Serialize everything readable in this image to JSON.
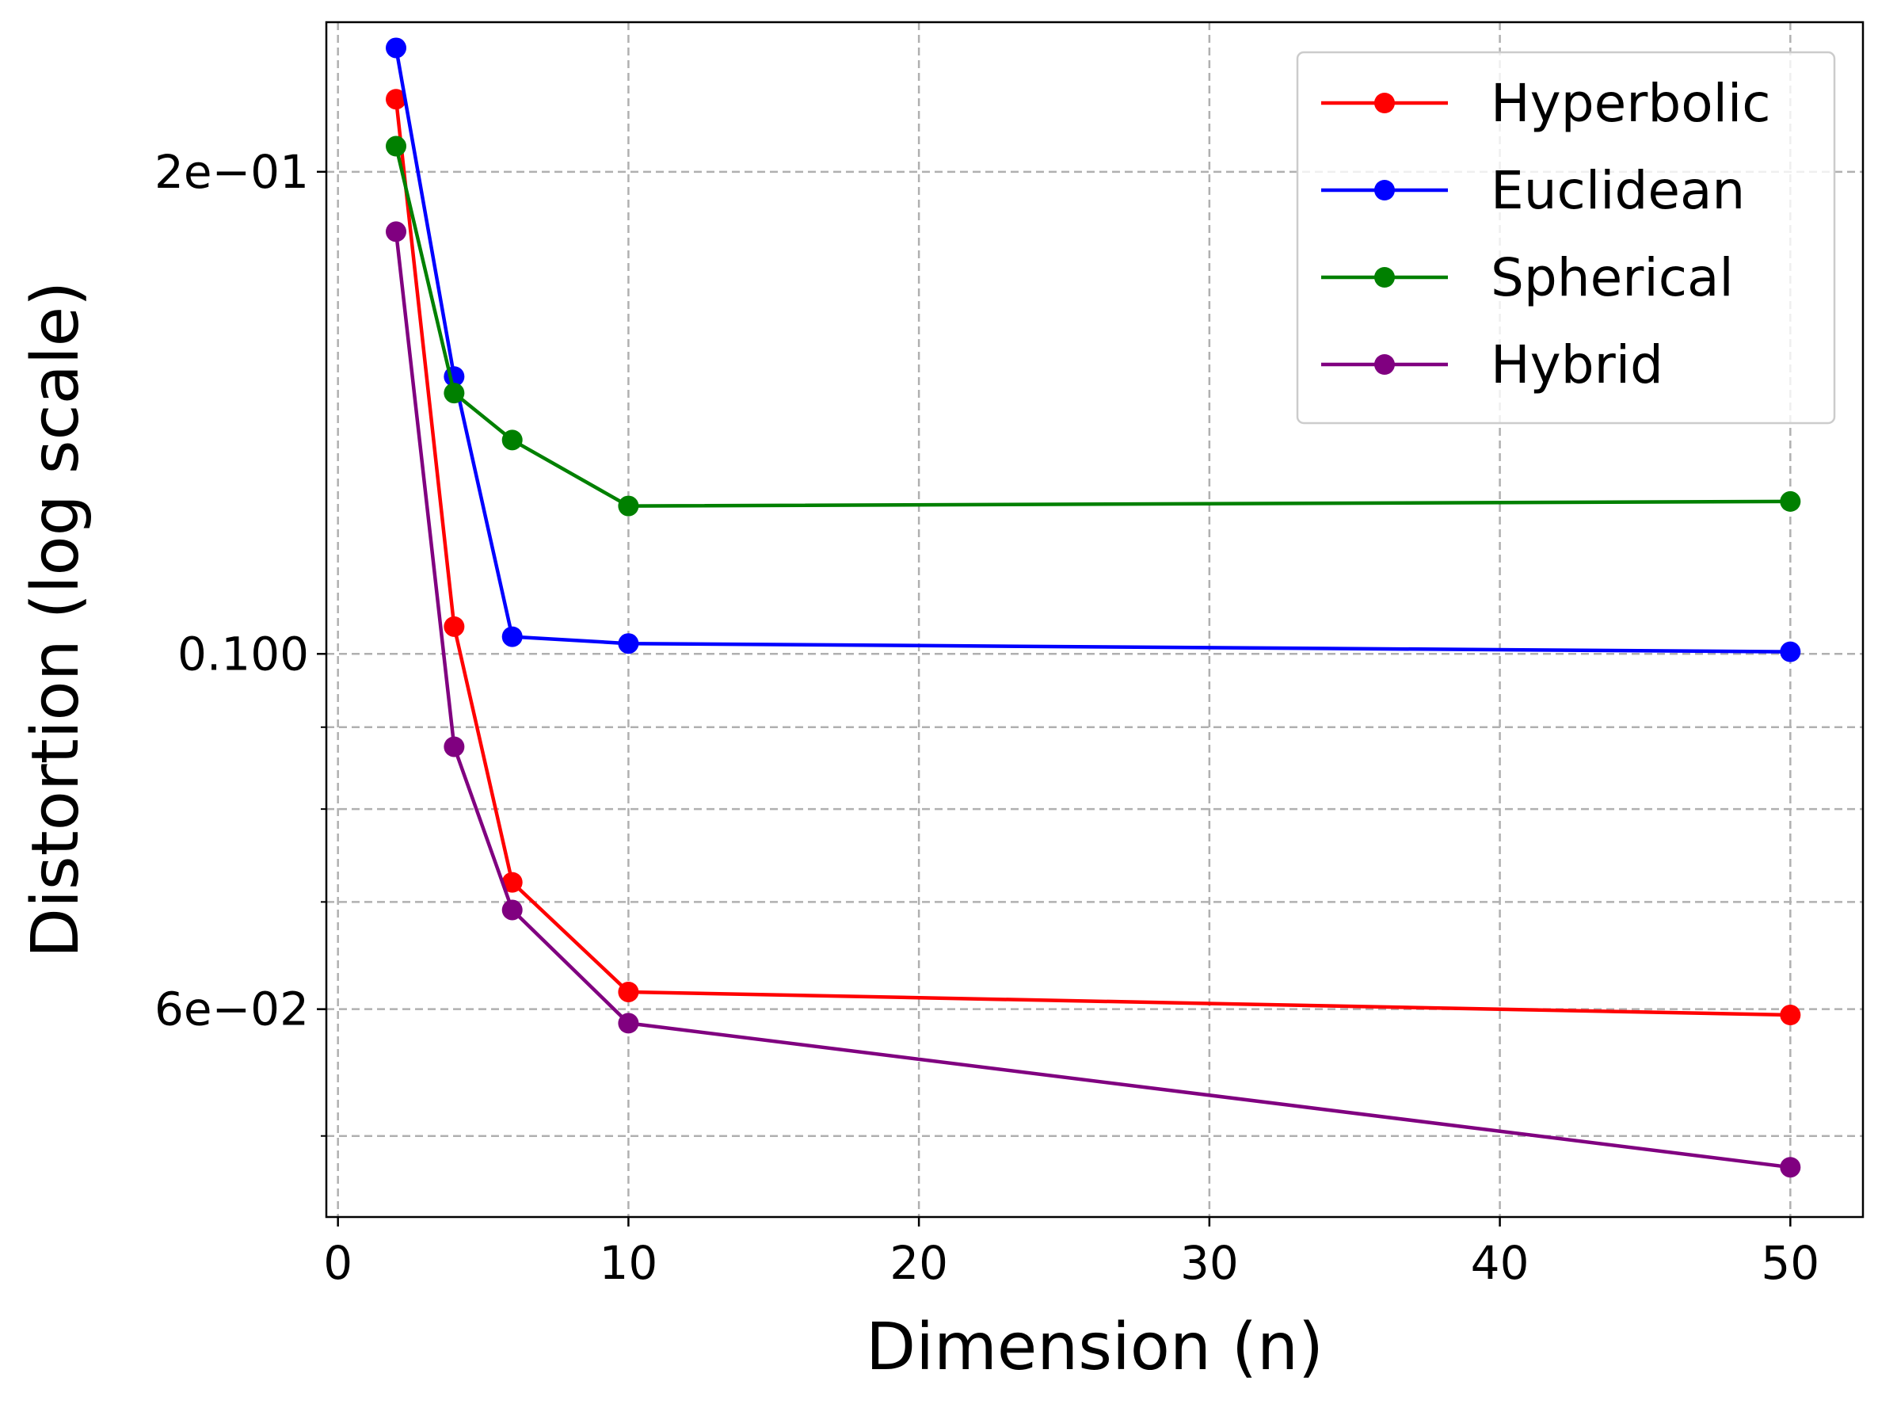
{
  "chart_data": {
    "type": "line",
    "title": "",
    "xlabel": "Dimension (n)",
    "ylabel": "Distortion (log scale)",
    "yscale": "log",
    "xlim": [
      -0.4,
      52.5
    ],
    "ylim": [
      0.0445,
      0.248
    ],
    "grid": true,
    "legend_position": "top-right",
    "x": [
      2,
      4,
      6,
      10,
      50
    ],
    "x_ticks": [
      0,
      10,
      20,
      30,
      40,
      50
    ],
    "x_tick_labels": [
      "0",
      "10",
      "20",
      "30",
      "40",
      "50"
    ],
    "y_major_ticks": [
      0.06,
      0.1,
      0.2
    ],
    "y_major_tick_labels": [
      "6e−02",
      "0.100",
      "2e−01"
    ],
    "y_minor_ticks": [
      0.05,
      0.07,
      0.08,
      0.09
    ],
    "series": [
      {
        "name": "Hyperbolic",
        "color": "#ff0000",
        "values": [
          0.222,
          0.104,
          0.072,
          0.0615,
          0.0595
        ]
      },
      {
        "name": "Euclidean",
        "color": "#0000ff",
        "values": [
          0.239,
          0.149,
          0.1025,
          0.1015,
          0.1003
        ]
      },
      {
        "name": "Spherical",
        "color": "#008000",
        "values": [
          0.2075,
          0.1455,
          0.136,
          0.1237,
          0.1245
        ]
      },
      {
        "name": "Hybrid",
        "color": "#800080",
        "values": [
          0.1835,
          0.0875,
          0.0692,
          0.0588,
          0.0478
        ]
      }
    ]
  }
}
